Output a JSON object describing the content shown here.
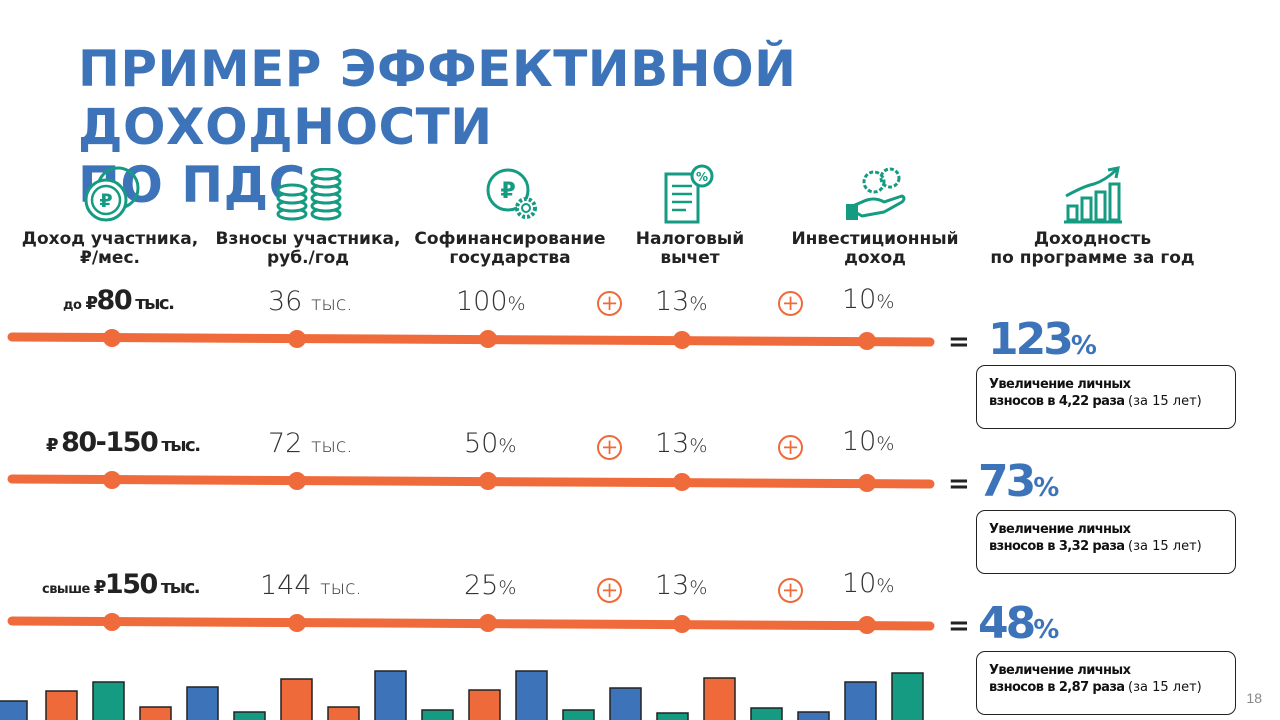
{
  "title_line1": "ПРИМЕР ЭФФЕКТИВНОЙ ДОХОДНОСТИ",
  "title_line2": "ПО ПДС",
  "columns": [
    {
      "line1": "Доход участника,",
      "line2": "₽/мес.",
      "icon": "ruble-coins-icon"
    },
    {
      "line1": "Взносы участника,",
      "line2": "руб./год",
      "icon": "coin-stacks-icon"
    },
    {
      "line1": "Софинансирование",
      "line2": "государства",
      "icon": "ruble-gear-icon"
    },
    {
      "line1": "Налоговый",
      "line2": "вычет",
      "icon": "tax-document-icon"
    },
    {
      "line1": "Инвестиционный",
      "line2": "доход",
      "icon": "hand-coins-icon"
    },
    {
      "line1": "Доходность",
      "line2": "по программе за год",
      "icon": "growth-chart-icon"
    }
  ],
  "rows": [
    {
      "income_prefix": "до",
      "income_symbol": "₽",
      "income_value": "80",
      "income_suffix": "тыс.",
      "contribution": "36",
      "contribution_unit": "тыс.",
      "cofinancing": "100",
      "tax": "13",
      "invest": "10",
      "result": "123",
      "note_line1": "Увеличение личных",
      "note_bold": "взносов в 4,22 раза",
      "note_tail": "(за 15 лет)"
    },
    {
      "income_prefix": "",
      "income_symbol": "₽",
      "income_value": "80-150",
      "income_suffix": "тыс.",
      "contribution": "72",
      "contribution_unit": "тыс.",
      "cofinancing": "50",
      "tax": "13",
      "invest": "10",
      "result": "73",
      "note_line1": "Увеличение личных",
      "note_bold": "взносов в 3,32 раза",
      "note_tail": "(за 15 лет)"
    },
    {
      "income_prefix": "свыше",
      "income_symbol": "₽",
      "income_value": "150",
      "income_suffix": "тыс.",
      "contribution": "144",
      "contribution_unit": "тыс.",
      "cofinancing": "25",
      "tax": "13",
      "invest": "10",
      "result": "48",
      "note_line1": "Увеличение личных",
      "note_bold": "взносов в 2,87 раза",
      "note_tail": "(за 15 лет)"
    }
  ],
  "percent_sign": "%",
  "plus_sign": "+",
  "equals_sign": "=",
  "page_number": "18",
  "colors": {
    "accent_blue": "#3d74b9",
    "accent_orange": "#ee6a3a",
    "accent_teal": "#159b82"
  },
  "decor_bars": [
    {
      "color": "blue"
    },
    {
      "color": "orange"
    },
    {
      "color": "teal"
    },
    {
      "color": "orange"
    },
    {
      "color": "blue"
    },
    {
      "color": "teal"
    },
    {
      "color": "orange"
    },
    {
      "color": "orange"
    },
    {
      "color": "blue"
    },
    {
      "color": "teal"
    },
    {
      "color": "orange"
    },
    {
      "color": "blue"
    },
    {
      "color": "teal"
    },
    {
      "color": "blue"
    },
    {
      "color": "teal"
    },
    {
      "color": "orange"
    },
    {
      "color": "teal"
    },
    {
      "color": "blue"
    },
    {
      "color": "blue"
    },
    {
      "color": "teal"
    }
  ]
}
